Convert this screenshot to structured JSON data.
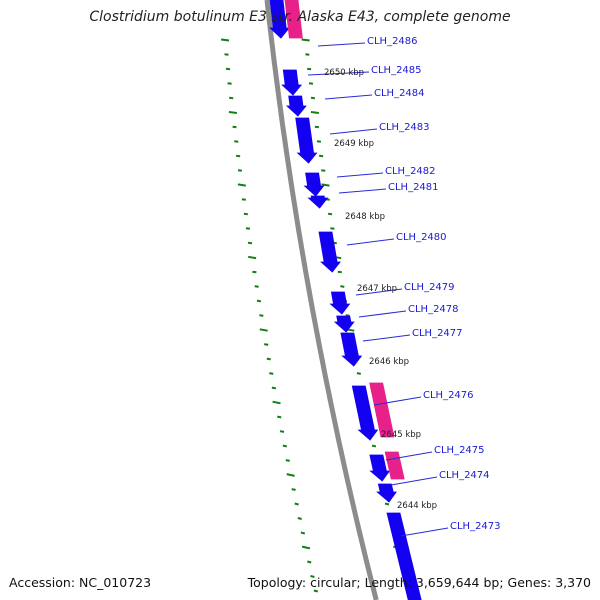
{
  "title": "Clostridium botulinum E3 str. Alaska E43, complete genome",
  "footer": {
    "accession_label": "Accession: NC_010723",
    "summary": "Topology: circular; Length: 3,659,644 bp; Genes: 3,370"
  },
  "colors": {
    "backbone": "#8c8c8c",
    "forward_cds": "#e8218a",
    "reverse_cds": "#1400f0",
    "ticks": "#138013",
    "gene_label": "#1a1ad6",
    "leader_line": "#2a2ad8",
    "tick_label": "#222222"
  },
  "genes": [
    {
      "name": "CLH_2486"
    },
    {
      "name": "CLH_2485"
    },
    {
      "name": "CLH_2484"
    },
    {
      "name": "CLH_2483"
    },
    {
      "name": "CLH_2482"
    },
    {
      "name": "CLH_2481"
    },
    {
      "name": "CLH_2480"
    },
    {
      "name": "CLH_2479"
    },
    {
      "name": "CLH_2478"
    },
    {
      "name": "CLH_2477"
    },
    {
      "name": "CLH_2476"
    },
    {
      "name": "CLH_2475"
    },
    {
      "name": "CLH_2474"
    },
    {
      "name": "CLH_2473"
    }
  ],
  "ticks": [
    {
      "label": "2650 kbp"
    },
    {
      "label": "2649 kbp"
    },
    {
      "label": "2648 kbp"
    },
    {
      "label": "2647 kbp"
    },
    {
      "label": "2646 kbp"
    },
    {
      "label": "2645 kbp"
    },
    {
      "label": "2644 kbp"
    }
  ]
}
